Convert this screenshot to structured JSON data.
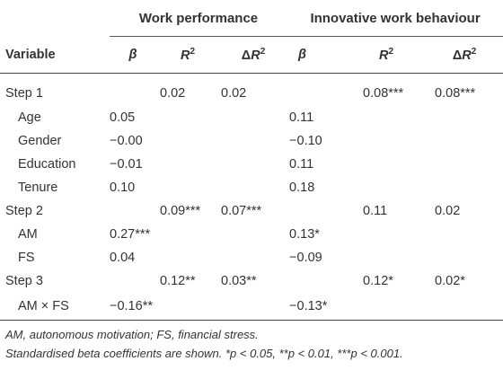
{
  "table": {
    "group_headers": {
      "work_performance": "Work performance",
      "innovative_work_behaviour": "Innovative work behaviour"
    },
    "column_headers": {
      "variable": "Variable",
      "beta_wp": "β",
      "r2_wp_base": "R",
      "r2_wp_sup": "2",
      "dr2_wp_delta": "Δ",
      "dr2_wp_base": "R",
      "dr2_wp_sup": "2",
      "beta_iwb": "β",
      "r2_iwb_base": "R",
      "r2_iwb_sup": "2",
      "dr2_iwb_delta": "Δ",
      "dr2_iwb_base": "R",
      "dr2_iwb_sup": "2"
    },
    "rows": [
      {
        "variable": "Step 1",
        "wp_beta": "",
        "wp_r2": "0.02",
        "wp_dr2": "0.02",
        "iwb_beta": "",
        "iwb_r2": "0.08***",
        "iwb_dr2": "0.08***"
      },
      {
        "variable": "Age",
        "wp_beta": "0.05",
        "wp_r2": "",
        "wp_dr2": "",
        "iwb_beta": "0.11",
        "iwb_r2": "",
        "iwb_dr2": ""
      },
      {
        "variable": "Gender",
        "wp_beta": "−0.00",
        "wp_r2": "",
        "wp_dr2": "",
        "iwb_beta": "−0.10",
        "iwb_r2": "",
        "iwb_dr2": ""
      },
      {
        "variable": "Education",
        "wp_beta": "−0.01",
        "wp_r2": "",
        "wp_dr2": "",
        "iwb_beta": "0.11",
        "iwb_r2": "",
        "iwb_dr2": ""
      },
      {
        "variable": "Tenure",
        "wp_beta": "0.10",
        "wp_r2": "",
        "wp_dr2": "",
        "iwb_beta": "0.18",
        "iwb_r2": "",
        "iwb_dr2": ""
      },
      {
        "variable": "Step 2",
        "wp_beta": "",
        "wp_r2": "0.09***",
        "wp_dr2": "0.07***",
        "iwb_beta": "",
        "iwb_r2": "0.11",
        "iwb_dr2": "0.02"
      },
      {
        "variable": "AM",
        "wp_beta": "0.27***",
        "wp_r2": "",
        "wp_dr2": "",
        "iwb_beta": "0.13*",
        "iwb_r2": "",
        "iwb_dr2": ""
      },
      {
        "variable": "FS",
        "wp_beta": "0.04",
        "wp_r2": "",
        "wp_dr2": "",
        "iwb_beta": "−0.09",
        "iwb_r2": "",
        "iwb_dr2": ""
      },
      {
        "variable": "Step 3",
        "wp_beta": "",
        "wp_r2": "0.12**",
        "wp_dr2": "0.03**",
        "iwb_beta": "",
        "iwb_r2": "0.12*",
        "iwb_dr2": "0.02*"
      },
      {
        "variable": "AM × FS",
        "wp_beta": "−0.16**",
        "wp_r2": "",
        "wp_dr2": "",
        "iwb_beta": "−0.13*",
        "iwb_r2": "",
        "iwb_dr2": ""
      }
    ]
  },
  "notes": {
    "abbreviations": "AM, autonomous motivation; FS, financial stress.",
    "significance": "Standardised beta coefficients are shown. *p < 0.05, **p < 0.01, ***p < 0.001."
  }
}
